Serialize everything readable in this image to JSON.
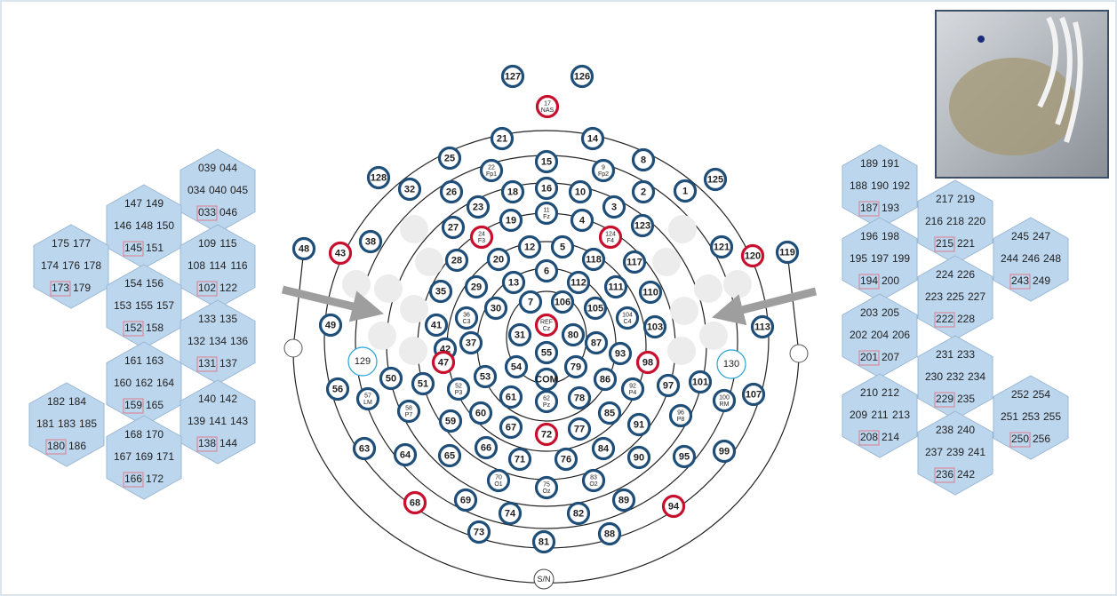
{
  "electrode_colors": {
    "default": "#1f4e79",
    "reference": "#c8102e",
    "outer": "#29a3d6"
  },
  "electrodes": [
    {
      "label": "127"
    },
    {
      "label": "126"
    },
    {
      "label": "17",
      "sublabel": "NAS",
      "reference": true
    },
    {
      "label": "21"
    },
    {
      "label": "14"
    },
    {
      "label": "25"
    },
    {
      "label": "8"
    },
    {
      "label": "22",
      "sublabel": "Fp1"
    },
    {
      "label": "15"
    },
    {
      "label": "9",
      "sublabel": "Fp2"
    },
    {
      "label": "128"
    },
    {
      "label": "32"
    },
    {
      "label": "26"
    },
    {
      "label": "18"
    },
    {
      "label": "16"
    },
    {
      "label": "10"
    },
    {
      "label": "2"
    },
    {
      "label": "1"
    },
    {
      "label": "125"
    },
    {
      "label": "23"
    },
    {
      "label": "3"
    },
    {
      "label": "27"
    },
    {
      "label": "19"
    },
    {
      "label": "11",
      "sublabel": "Fz"
    },
    {
      "label": "4"
    },
    {
      "label": "123"
    },
    {
      "label": "24",
      "sublabel": "F3",
      "reference": true
    },
    {
      "label": "124",
      "sublabel": "F4",
      "reference": true
    },
    {
      "label": "12"
    },
    {
      "label": "5"
    },
    {
      "label": "48"
    },
    {
      "label": "38"
    },
    {
      "label": "43",
      "reference": true
    },
    {
      "label": "121"
    },
    {
      "label": "120",
      "reference": true
    },
    {
      "label": "119"
    },
    {
      "label": "28"
    },
    {
      "label": "20"
    },
    {
      "label": "118"
    },
    {
      "label": "117"
    },
    {
      "label": "6"
    },
    {
      "label": "13"
    },
    {
      "label": "112"
    },
    {
      "label": "29"
    },
    {
      "label": "111"
    },
    {
      "label": "35"
    },
    {
      "label": "110"
    },
    {
      "label": "7"
    },
    {
      "label": "106"
    },
    {
      "label": "30"
    },
    {
      "label": "105"
    },
    {
      "label": "36",
      "sublabel": "C3"
    },
    {
      "label": "104",
      "sublabel": "C4"
    },
    {
      "label": "41"
    },
    {
      "label": "103"
    },
    {
      "label": "49"
    },
    {
      "label": "113"
    },
    {
      "label": "REF",
      "sublabel": "Cz",
      "reference": true
    },
    {
      "label": "31"
    },
    {
      "label": "80"
    },
    {
      "label": "37"
    },
    {
      "label": "87"
    },
    {
      "label": "55"
    },
    {
      "label": "42"
    },
    {
      "label": "93"
    },
    {
      "label": "47",
      "reference": true
    },
    {
      "label": "98",
      "reference": true
    },
    {
      "label": "54"
    },
    {
      "label": "79"
    },
    {
      "label": "53"
    },
    {
      "label": "86"
    },
    {
      "label": "COM"
    },
    {
      "label": "50"
    },
    {
      "label": "51"
    },
    {
      "label": "52",
      "sublabel": "P3"
    },
    {
      "label": "92",
      "sublabel": "P4"
    },
    {
      "label": "97"
    },
    {
      "label": "101"
    },
    {
      "label": "107"
    },
    {
      "label": "56"
    },
    {
      "label": "57",
      "sublabel": "LM"
    },
    {
      "label": "100",
      "sublabel": "RM"
    },
    {
      "label": "61"
    },
    {
      "label": "62",
      "sublabel": "Pz"
    },
    {
      "label": "78"
    },
    {
      "label": "58",
      "sublabel": "P7"
    },
    {
      "label": "96",
      "sublabel": "P8"
    },
    {
      "label": "60"
    },
    {
      "label": "85"
    },
    {
      "label": "59"
    },
    {
      "label": "91"
    },
    {
      "label": "67"
    },
    {
      "label": "72",
      "reference": true
    },
    {
      "label": "77"
    },
    {
      "label": "63"
    },
    {
      "label": "64"
    },
    {
      "label": "65"
    },
    {
      "label": "66"
    },
    {
      "label": "71"
    },
    {
      "label": "76"
    },
    {
      "label": "84"
    },
    {
      "label": "90"
    },
    {
      "label": "95"
    },
    {
      "label": "99"
    },
    {
      "label": "70",
      "sublabel": "O1"
    },
    {
      "label": "75",
      "sublabel": "Oz"
    },
    {
      "label": "83",
      "sublabel": "O2"
    },
    {
      "label": "68",
      "reference": true
    },
    {
      "label": "69"
    },
    {
      "label": "74"
    },
    {
      "label": "82"
    },
    {
      "label": "89"
    },
    {
      "label": "94",
      "reference": true
    },
    {
      "label": "73"
    },
    {
      "label": "81"
    },
    {
      "label": "88"
    }
  ],
  "outer_sensors": [
    {
      "label": "129"
    },
    {
      "label": "130"
    }
  ],
  "bottom_marker": "S/N",
  "sensor_clusters": [
    {
      "rows": [
        [
          "039",
          "044"
        ],
        [
          "034",
          "040",
          "045"
        ],
        [
          "033",
          "046"
        ]
      ]
    },
    {
      "rows": [
        [
          "147",
          "149"
        ],
        [
          "146",
          "148",
          "150"
        ],
        [
          "145",
          "151"
        ]
      ]
    },
    {
      "rows": [
        [
          "109",
          "115"
        ],
        [
          "108",
          "114",
          "116"
        ],
        [
          "102",
          "122"
        ]
      ]
    },
    {
      "rows": [
        [
          "175",
          "177"
        ],
        [
          "174",
          "176",
          "178"
        ],
        [
          "173",
          "179"
        ]
      ]
    },
    {
      "rows": [
        [
          "154",
          "156"
        ],
        [
          "153",
          "155",
          "157"
        ],
        [
          "152",
          "158"
        ]
      ]
    },
    {
      "rows": [
        [
          "133",
          "135"
        ],
        [
          "132",
          "134",
          "136"
        ],
        [
          "131",
          "137"
        ]
      ]
    },
    {
      "rows": [
        [
          "161",
          "163"
        ],
        [
          "160",
          "162",
          "164"
        ],
        [
          "159",
          "165"
        ]
      ]
    },
    {
      "rows": [
        [
          "140",
          "142"
        ],
        [
          "139",
          "141",
          "143"
        ],
        [
          "138",
          "144"
        ]
      ]
    },
    {
      "rows": [
        [
          "182",
          "184"
        ],
        [
          "181",
          "183",
          "185"
        ],
        [
          "180",
          "186"
        ]
      ]
    },
    {
      "rows": [
        [
          "168",
          "170"
        ],
        [
          "167",
          "169",
          "171"
        ],
        [
          "166",
          "172"
        ]
      ]
    },
    {
      "rows": [
        [
          "189",
          "191"
        ],
        [
          "188",
          "190",
          "192"
        ],
        [
          "187",
          "193"
        ]
      ]
    },
    {
      "rows": [
        [
          "217",
          "219"
        ],
        [
          "216",
          "218",
          "220"
        ],
        [
          "215",
          "221"
        ]
      ]
    },
    {
      "rows": [
        [
          "245",
          "247"
        ],
        [
          "244",
          "246",
          "248"
        ],
        [
          "243",
          "249"
        ]
      ]
    },
    {
      "rows": [
        [
          "196",
          "198"
        ],
        [
          "195",
          "197",
          "199"
        ],
        [
          "194",
          "200"
        ]
      ]
    },
    {
      "rows": [
        [
          "224",
          "226"
        ],
        [
          "223",
          "225",
          "227"
        ],
        [
          "222",
          "228"
        ]
      ]
    },
    {
      "rows": [
        [
          "203",
          "205"
        ],
        [
          "202",
          "204",
          "206"
        ],
        [
          "201",
          "207"
        ]
      ]
    },
    {
      "rows": [
        [
          "231",
          "233"
        ],
        [
          "230",
          "232",
          "234"
        ],
        [
          "229",
          "235"
        ]
      ]
    },
    {
      "rows": [
        [
          "252",
          "254"
        ],
        [
          "251",
          "253",
          "255"
        ],
        [
          "250",
          "256"
        ]
      ]
    },
    {
      "rows": [
        [
          "210",
          "212"
        ],
        [
          "209",
          "211",
          "213"
        ],
        [
          "208",
          "214"
        ]
      ]
    },
    {
      "rows": [
        [
          "238",
          "240"
        ],
        [
          "237",
          "239",
          "241"
        ],
        [
          "236",
          "242"
        ]
      ]
    }
  ]
}
